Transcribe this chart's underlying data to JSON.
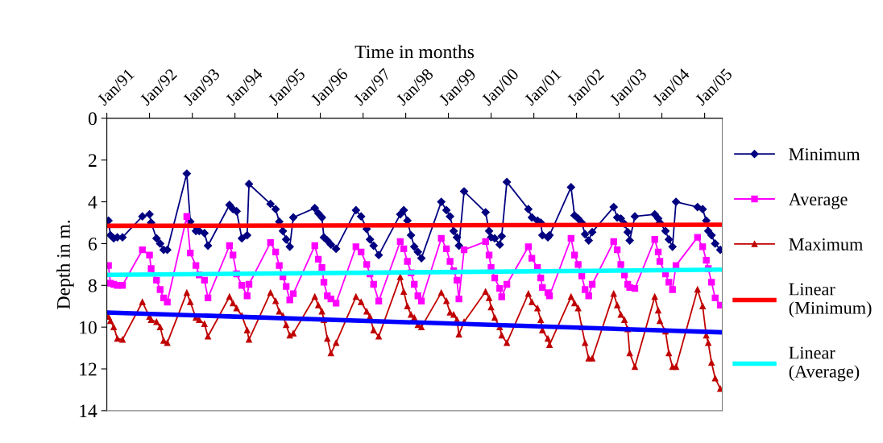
{
  "chart_data": {
    "type": "line",
    "xlabel": "Time in months",
    "ylabel": "Depth in m.",
    "x": [
      "1991-01-15",
      "1991-02-01",
      "1991-03-01",
      "1991-04-01",
      "1991-05-15",
      "1991-11-01",
      "1992-01-01",
      "1992-01-15",
      "1992-03-01",
      "1992-04-01",
      "1992-05-01",
      "1992-06-01",
      "1992-11-15",
      "1992-12-15",
      "1993-02-01",
      "1993-03-01",
      "1993-04-15",
      "1993-05-15",
      "1993-11-15",
      "1993-12-15",
      "1994-01-15",
      "1994-03-01",
      "1994-04-15",
      "1994-05-01",
      "1994-11-01",
      "1994-12-15",
      "1995-01-15",
      "1995-02-15",
      "1995-03-15",
      "1995-04-15",
      "1995-05-15",
      "1995-11-15",
      "1995-12-15",
      "1996-01-15",
      "1996-02-01",
      "1996-03-01",
      "1996-04-01",
      "1996-05-15",
      "1996-11-01",
      "1996-12-15",
      "1997-02-01",
      "1997-03-01",
      "1997-04-01",
      "1997-05-15",
      "1997-11-15",
      "1997-12-15",
      "1998-01-15",
      "1998-02-15",
      "1998-03-15",
      "1998-04-15",
      "1998-05-15",
      "1998-11-01",
      "1998-12-15",
      "1999-01-15",
      "1999-02-15",
      "1999-03-15",
      "1999-04-01",
      "1999-05-15",
      "1999-11-15",
      "1999-12-15",
      "2000-01-01",
      "2000-02-01",
      "2000-03-15",
      "2000-04-01",
      "2000-05-15",
      "2000-11-15",
      "2000-12-15",
      "2001-02-01",
      "2001-03-01",
      "2001-03-15",
      "2001-05-01",
      "2001-05-15",
      "2001-11-15",
      "2001-12-15",
      "2002-01-15",
      "2002-02-15",
      "2002-03-15",
      "2002-04-15",
      "2002-05-15",
      "2002-11-15",
      "2002-12-15",
      "2003-01-15",
      "2003-02-15",
      "2003-03-15",
      "2003-04-01",
      "2003-05-15",
      "2003-11-01",
      "2003-12-01",
      "2003-12-15",
      "2004-02-01",
      "2004-03-01",
      "2004-04-01",
      "2004-05-01",
      "2004-11-01",
      "2004-12-15",
      "2005-01-15",
      "2005-02-01",
      "2005-03-01",
      "2005-04-01",
      "2005-05-15"
    ],
    "series": [
      {
        "name": "Minimum",
        "color": "#000080",
        "marker": "diamond",
        "values": [
          4.9,
          5.6,
          5.75,
          5.7,
          5.7,
          4.7,
          4.6,
          5.0,
          5.75,
          6.0,
          6.3,
          6.3,
          2.65,
          4.95,
          5.4,
          5.4,
          5.5,
          6.1,
          4.15,
          4.35,
          4.45,
          5.75,
          5.6,
          3.15,
          4.1,
          4.35,
          4.95,
          5.4,
          5.8,
          6.15,
          4.75,
          4.3,
          4.55,
          4.75,
          5.7,
          5.85,
          6.05,
          6.25,
          4.4,
          4.7,
          5.3,
          5.8,
          6.1,
          6.55,
          4.6,
          4.4,
          4.9,
          5.6,
          6.15,
          6.4,
          6.7,
          4.0,
          4.4,
          4.7,
          5.4,
          5.7,
          6.1,
          3.5,
          4.5,
          5.4,
          5.7,
          5.75,
          6.05,
          5.65,
          3.05,
          4.35,
          4.75,
          4.9,
          5.0,
          5.6,
          5.7,
          5.6,
          3.3,
          4.65,
          4.8,
          5.0,
          5.55,
          5.85,
          5.45,
          4.25,
          4.75,
          4.8,
          5.05,
          5.45,
          5.85,
          4.7,
          4.6,
          4.8,
          5.0,
          5.4,
          5.8,
          6.15,
          4.0,
          4.25,
          4.35,
          4.9,
          5.4,
          5.6,
          6.0,
          6.3
        ]
      },
      {
        "name": "Average",
        "color": "#ff00ff",
        "marker": "square",
        "values": [
          7.05,
          7.9,
          7.95,
          8.0,
          8.0,
          6.3,
          6.55,
          7.2,
          7.75,
          8.2,
          8.6,
          8.8,
          4.7,
          6.45,
          7.05,
          7.5,
          7.75,
          8.6,
          6.1,
          6.55,
          7.45,
          8.0,
          8.5,
          7.95,
          5.95,
          6.4,
          7.05,
          7.6,
          8.05,
          8.7,
          8.4,
          6.1,
          6.75,
          7.15,
          7.85,
          8.5,
          8.65,
          8.85,
          6.15,
          6.4,
          7.0,
          7.45,
          7.95,
          8.75,
          5.9,
          6.25,
          6.85,
          7.4,
          7.95,
          8.5,
          8.75,
          5.75,
          6.25,
          6.85,
          7.3,
          7.75,
          8.65,
          6.3,
          5.9,
          6.55,
          7.15,
          7.65,
          8.15,
          8.55,
          7.95,
          6.15,
          6.7,
          7.15,
          7.65,
          8.1,
          8.35,
          8.5,
          5.75,
          6.55,
          7.0,
          7.55,
          8.2,
          8.5,
          7.95,
          5.9,
          6.3,
          7.0,
          7.5,
          7.95,
          8.1,
          8.15,
          5.8,
          6.4,
          6.85,
          7.45,
          7.85,
          8.2,
          7.05,
          5.7,
          6.15,
          6.8,
          7.2,
          7.85,
          8.6,
          8.95
        ]
      },
      {
        "name": "Maximum",
        "color": "#c00000",
        "marker": "triangle",
        "values": [
          9.5,
          9.7,
          10.0,
          10.55,
          10.6,
          8.8,
          9.5,
          9.65,
          9.75,
          10.0,
          10.65,
          10.75,
          8.35,
          8.8,
          9.55,
          9.65,
          9.85,
          10.45,
          8.55,
          8.85,
          9.1,
          9.45,
          10.15,
          10.6,
          8.35,
          8.75,
          9.25,
          9.45,
          9.9,
          10.4,
          10.3,
          8.55,
          8.95,
          9.25,
          9.65,
          10.55,
          11.25,
          10.75,
          8.55,
          8.8,
          9.25,
          9.5,
          10.15,
          10.45,
          7.6,
          8.3,
          9.0,
          9.4,
          9.55,
          9.9,
          10.0,
          8.35,
          8.75,
          9.3,
          9.4,
          9.65,
          10.35,
          9.75,
          8.3,
          8.6,
          9.05,
          9.55,
          10.0,
          10.4,
          10.75,
          8.4,
          8.8,
          9.1,
          9.65,
          10.15,
          10.55,
          10.85,
          8.55,
          8.85,
          9.1,
          10.0,
          10.75,
          11.5,
          11.5,
          8.4,
          8.95,
          9.4,
          9.65,
          10.1,
          11.25,
          11.9,
          8.55,
          9.2,
          9.7,
          10.2,
          11.25,
          11.9,
          11.9,
          8.2,
          9.0,
          10.4,
          10.75,
          11.7,
          12.45,
          12.95
        ]
      },
      {
        "name": "Linear (Minimum)",
        "color": "#ff0000",
        "marker": "none",
        "x": [
          "1991-01-01",
          "2005-06-01"
        ],
        "values": [
          5.15,
          5.1
        ]
      },
      {
        "name": "Linear (Average)",
        "color": "#00ffff",
        "marker": "none",
        "x": [
          "1991-01-01",
          "2005-06-01"
        ],
        "values": [
          7.5,
          7.25
        ]
      },
      {
        "color": "#0000ff",
        "marker": "none",
        "x": [
          "1991-01-01",
          "2005-06-01"
        ],
        "values": [
          9.3,
          10.25
        ]
      }
    ],
    "xlim": [
      "1991-01-01",
      "2005-06-01"
    ],
    "xticks": [
      {
        "value": "1991-01-01",
        "label": "Jan/91"
      },
      {
        "value": "1992-01-01",
        "label": "Jan/92"
      },
      {
        "value": "1993-01-01",
        "label": "Jan/93"
      },
      {
        "value": "1994-01-01",
        "label": "Jan/94"
      },
      {
        "value": "1995-01-01",
        "label": "Jan/95"
      },
      {
        "value": "1996-01-01",
        "label": "Jan/96"
      },
      {
        "value": "1997-01-01",
        "label": "Jan/97"
      },
      {
        "value": "1998-01-01",
        "label": "Jan/98"
      },
      {
        "value": "1999-01-01",
        "label": "Jan/99"
      },
      {
        "value": "2000-01-01",
        "label": "Jan/00"
      },
      {
        "value": "2001-01-01",
        "label": "Jan/01"
      },
      {
        "value": "2002-01-01",
        "label": "Jan/02"
      },
      {
        "value": "2003-01-01",
        "label": "Jan/03"
      },
      {
        "value": "2004-01-01",
        "label": "Jan/04"
      },
      {
        "value": "2005-01-01",
        "label": "Jan/05"
      }
    ],
    "ylim": [
      14,
      0
    ],
    "yticks": [
      0,
      2,
      4,
      6,
      8,
      10,
      12,
      14
    ],
    "grid": false,
    "legend": "right",
    "line_style": "solid"
  }
}
